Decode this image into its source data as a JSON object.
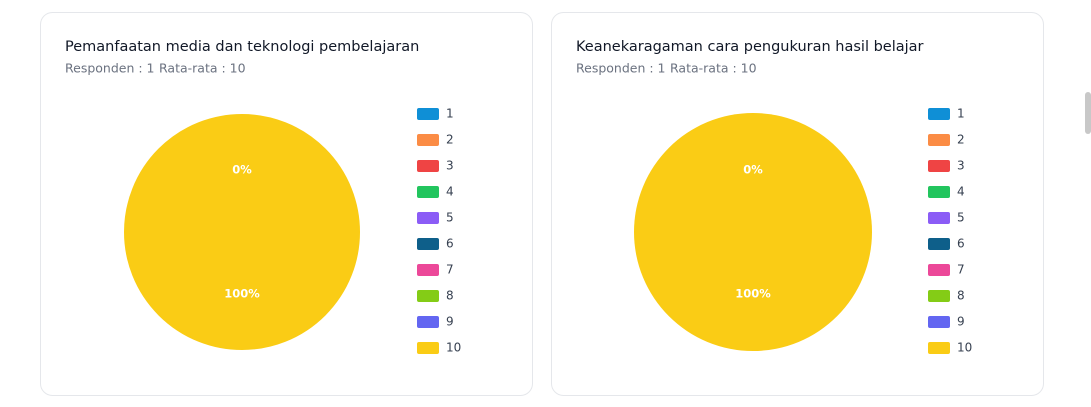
{
  "chart_data": [
    {
      "type": "pie",
      "title": "Pemanfaatan media dan teknologi pembelajaran",
      "respondents": "Responden : 1",
      "average": "Rata-rata : 10",
      "categories": [
        "1",
        "2",
        "3",
        "4",
        "5",
        "6",
        "7",
        "8",
        "9",
        "10"
      ],
      "values": [
        0,
        0,
        0,
        0,
        0,
        0,
        0,
        0,
        0,
        100
      ],
      "value_labels": [
        "0%",
        null,
        null,
        null,
        null,
        null,
        null,
        null,
        null,
        "100%"
      ],
      "colors": [
        "#0f8fd6",
        "#fb8c45",
        "#ef4444",
        "#22c55e",
        "#8b5cf6",
        "#0e5f8a",
        "#ec4899",
        "#84cc16",
        "#6366f1",
        "#facc15"
      ],
      "slice_border": true
    },
    {
      "type": "pie",
      "title": "Keanekaragaman cara pengukuran hasil belajar",
      "respondents": "Responden : 1",
      "average": "Rata-rata : 10",
      "categories": [
        "1",
        "2",
        "3",
        "4",
        "5",
        "6",
        "7",
        "8",
        "9",
        "10"
      ],
      "values": [
        0,
        0,
        0,
        0,
        0,
        0,
        0,
        0,
        0,
        100
      ],
      "value_labels": [
        "0%",
        null,
        null,
        null,
        null,
        null,
        null,
        null,
        null,
        "100%"
      ],
      "colors": [
        "#0f8fd6",
        "#fb8c45",
        "#ef4444",
        "#22c55e",
        "#8b5cf6",
        "#0e5f8a",
        "#ec4899",
        "#84cc16",
        "#6366f1",
        "#facc15"
      ],
      "slice_border": false
    }
  ]
}
